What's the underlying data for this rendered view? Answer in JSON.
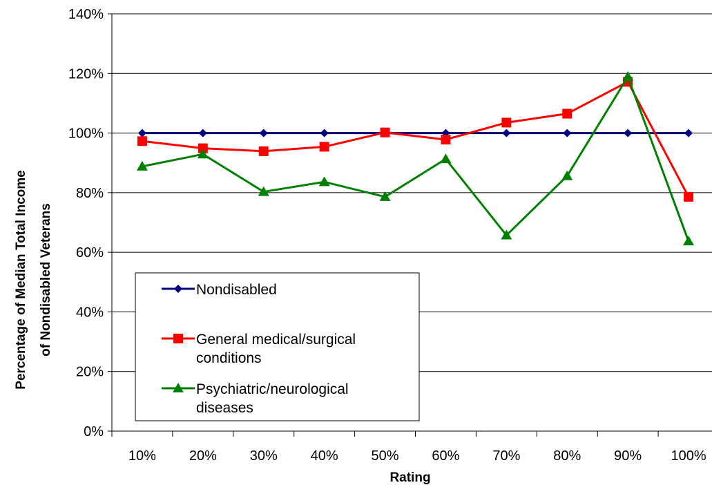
{
  "chart_data": {
    "type": "line",
    "categories": [
      "10%",
      "20%",
      "30%",
      "40%",
      "50%",
      "60%",
      "70%",
      "80%",
      "90%",
      "100%"
    ],
    "series": [
      {
        "name": "Nondisabled",
        "name_lines": [
          "Nondisabled"
        ],
        "color": "#000080",
        "marker": "diamond",
        "values": [
          100,
          100,
          100,
          100,
          100,
          100,
          100,
          100,
          100,
          100
        ]
      },
      {
        "name": "General medical/surgical conditions",
        "name_lines": [
          "General medical/surgical",
          "conditions"
        ],
        "color": "#ff0000",
        "marker": "square",
        "values": [
          97.3,
          94.9,
          93.9,
          95.4,
          100.2,
          97.8,
          103.5,
          106.5,
          117.2,
          78.6
        ]
      },
      {
        "name": "Psychiatric/neurological diseases",
        "name_lines": [
          "Psychiatric/neurological",
          "diseases"
        ],
        "color": "#008000",
        "marker": "triangle",
        "values": [
          88.8,
          92.9,
          80.3,
          83.6,
          78.6,
          91.3,
          65.7,
          85.6,
          118.9,
          63.7
        ]
      }
    ],
    "y_ticks": [
      "0%",
      "20%",
      "40%",
      "60%",
      "80%",
      "100%",
      "120%",
      "140%"
    ],
    "ylim": [
      0,
      140
    ],
    "ystep": 20,
    "xlabel": "Rating",
    "ylabel_lines": [
      "Percentage of Median Total Income",
      "of Nondisabled Veterans"
    ],
    "grid": "horizontal",
    "legend_position": "bottom-left"
  }
}
